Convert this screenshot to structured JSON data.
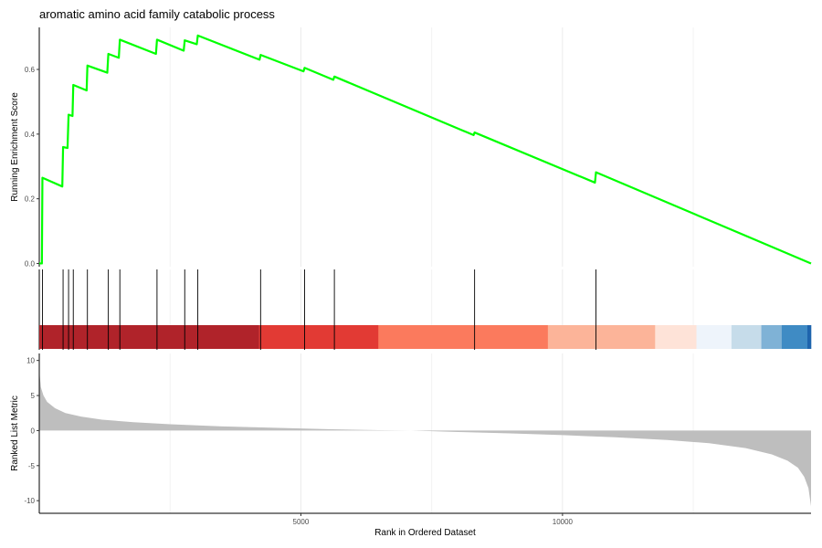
{
  "chart_data": {
    "type": "line",
    "title": "aromatic amino acid family catabolic process",
    "xlabel": "Rank in Ordered Dataset",
    "x_ticks": [
      5000,
      10000
    ],
    "x_range": [
      0,
      14750
    ],
    "grid": true,
    "panels": {
      "enrichment": {
        "ylabel": "Running Enrichment Score",
        "y_ticks": [
          0.0,
          0.2,
          0.4,
          0.6
        ],
        "ylim": [
          -0.01,
          0.73
        ],
        "line_color": "#00ff00",
        "points": [
          [
            0,
            0.0
          ],
          [
            50,
            0.0
          ],
          [
            60,
            0.265
          ],
          [
            440,
            0.238
          ],
          [
            455,
            0.36
          ],
          [
            540,
            0.357
          ],
          [
            560,
            0.46
          ],
          [
            635,
            0.456
          ],
          [
            650,
            0.552
          ],
          [
            905,
            0.535
          ],
          [
            920,
            0.612
          ],
          [
            1300,
            0.59
          ],
          [
            1320,
            0.648
          ],
          [
            1520,
            0.636
          ],
          [
            1540,
            0.692
          ],
          [
            2230,
            0.648
          ],
          [
            2250,
            0.692
          ],
          [
            2760,
            0.658
          ],
          [
            2780,
            0.69
          ],
          [
            3010,
            0.678
          ],
          [
            3030,
            0.705
          ],
          [
            4210,
            0.63
          ],
          [
            4230,
            0.645
          ],
          [
            5050,
            0.594
          ],
          [
            5070,
            0.605
          ],
          [
            5620,
            0.568
          ],
          [
            5640,
            0.578
          ],
          [
            8300,
            0.397
          ],
          [
            8320,
            0.405
          ],
          [
            10620,
            0.25
          ],
          [
            10640,
            0.282
          ],
          [
            14750,
            0.0
          ]
        ]
      },
      "hits": {
        "positions": [
          60,
          455,
          560,
          650,
          920,
          1320,
          1540,
          2250,
          2780,
          3030,
          4230,
          5070,
          5640,
          8320,
          10640
        ]
      },
      "color_bar": {
        "segments": [
          {
            "start": 0,
            "end": 4200,
            "color": "#b0232a"
          },
          {
            "start": 4200,
            "end": 6480,
            "color": "#e23a34"
          },
          {
            "start": 6480,
            "end": 9720,
            "color": "#fb7a5d"
          },
          {
            "start": 9720,
            "end": 11770,
            "color": "#fcb499"
          },
          {
            "start": 11770,
            "end": 12560,
            "color": "#fee3d8"
          },
          {
            "start": 12560,
            "end": 13230,
            "color": "#eef4fb"
          },
          {
            "start": 13230,
            "end": 13800,
            "color": "#c6dcea"
          },
          {
            "start": 13800,
            "end": 14190,
            "color": "#7fb2d6"
          },
          {
            "start": 14190,
            "end": 14680,
            "color": "#3f8bc4"
          },
          {
            "start": 14680,
            "end": 14750,
            "color": "#1e64ad"
          }
        ]
      },
      "ranked_metric": {
        "ylabel": "Ranked List Metric",
        "y_ticks": [
          10,
          5,
          0,
          -5,
          -10
        ],
        "ylim": [
          -11.8,
          11.0
        ],
        "fill_color": "#bebebe",
        "points": [
          [
            0,
            10.2
          ],
          [
            10,
            7.8
          ],
          [
            30,
            6.2
          ],
          [
            80,
            5.0
          ],
          [
            150,
            4.1
          ],
          [
            300,
            3.2
          ],
          [
            500,
            2.5
          ],
          [
            800,
            2.0
          ],
          [
            1200,
            1.55
          ],
          [
            1800,
            1.2
          ],
          [
            2500,
            0.9
          ],
          [
            3500,
            0.6
          ],
          [
            4500,
            0.4
          ],
          [
            5500,
            0.2
          ],
          [
            6500,
            0.05
          ],
          [
            7100,
            0.0
          ],
          [
            8000,
            -0.2
          ],
          [
            9000,
            -0.4
          ],
          [
            10000,
            -0.65
          ],
          [
            11000,
            -0.95
          ],
          [
            12000,
            -1.35
          ],
          [
            12800,
            -1.8
          ],
          [
            13500,
            -2.5
          ],
          [
            14000,
            -3.4
          ],
          [
            14300,
            -4.3
          ],
          [
            14500,
            -5.3
          ],
          [
            14620,
            -6.6
          ],
          [
            14700,
            -8.2
          ],
          [
            14750,
            -10.8
          ]
        ]
      }
    }
  }
}
